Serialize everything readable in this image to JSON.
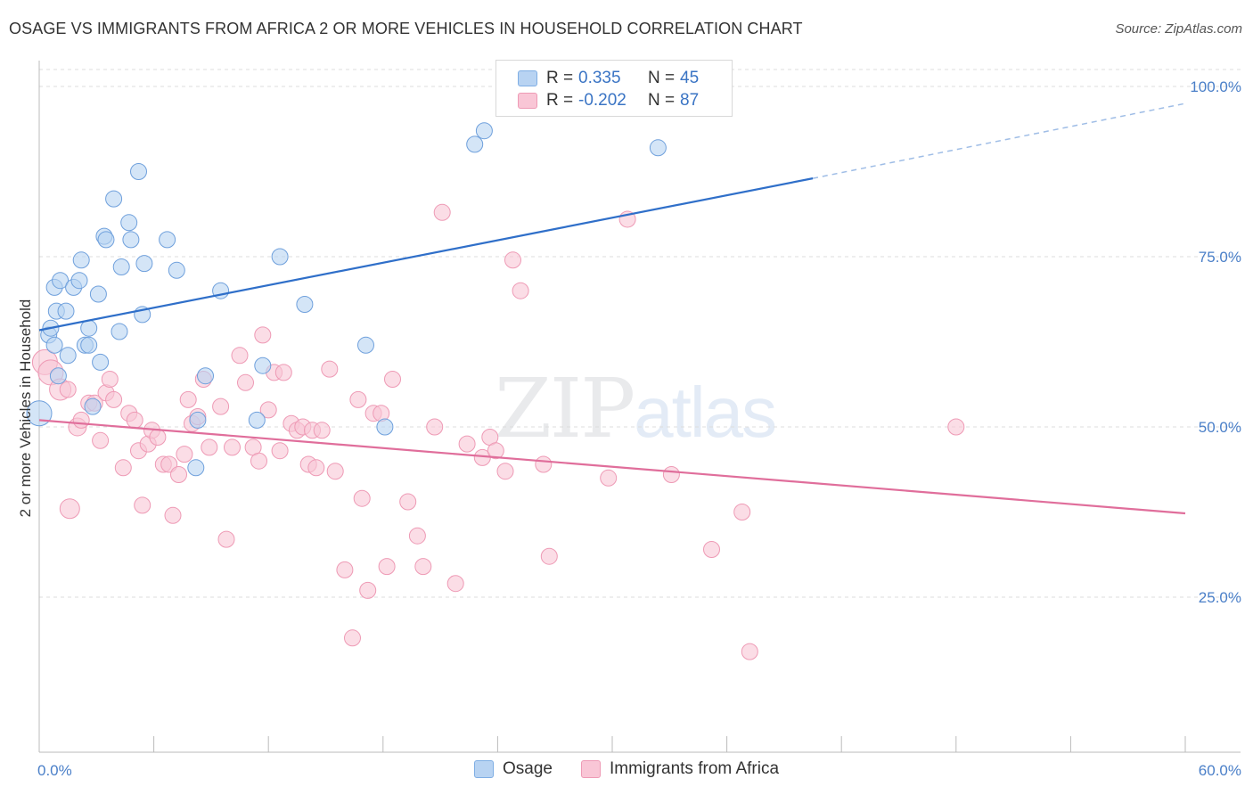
{
  "title": "OSAGE VS IMMIGRANTS FROM AFRICA 2 OR MORE VEHICLES IN HOUSEHOLD CORRELATION CHART",
  "source": "Source: ZipAtlas.com",
  "watermark": {
    "zip": "ZIP",
    "atlas": "atlas"
  },
  "legend": {
    "r_label": "R =",
    "n_label": "N =",
    "rows": [
      {
        "r": "0.335",
        "n": "45",
        "color": "#b8d3f2",
        "border": "#7faee4"
      },
      {
        "r": "-0.202",
        "n": "87",
        "color": "#f9c6d6",
        "border": "#ee9ab5"
      }
    ]
  },
  "bottom_legend": [
    "Osage",
    "Immigrants from Africa"
  ],
  "chart_data": {
    "type": "scatter",
    "title": "OSAGE VS IMMIGRANTS FROM AFRICA 2 OR MORE VEHICLES IN HOUSEHOLD CORRELATION CHART",
    "xlabel": "",
    "ylabel": "2 or more Vehicles in Household",
    "xlim": [
      0,
      60
    ],
    "ylim": [
      0,
      105
    ],
    "x_tick_labels": [
      "0.0%",
      "60.0%"
    ],
    "y_ticks": [
      25,
      50,
      75,
      100
    ],
    "y_tick_labels": [
      "25.0%",
      "50.0%",
      "75.0%",
      "100.0%"
    ],
    "grid": "horizontal dashed",
    "legend_position": "top-center",
    "series": [
      {
        "name": "Osage",
        "color": "#b8d3f2",
        "stroke": "#6fa0dc",
        "trend": {
          "x1": 0,
          "y1": 64.2,
          "x2": 40.5,
          "y2": 86.5,
          "x_dash_end": 60,
          "y_dash_end": 97.5,
          "color": "#2f6fc9"
        },
        "points": [
          [
            0.0,
            52.0,
            14
          ],
          [
            0.5,
            63.5,
            9
          ],
          [
            0.6,
            64.5,
            9
          ],
          [
            0.8,
            70.5,
            9
          ],
          [
            0.8,
            62.0,
            9
          ],
          [
            0.9,
            67.0,
            9
          ],
          [
            1.0,
            57.5,
            9
          ],
          [
            1.1,
            71.5,
            9
          ],
          [
            1.4,
            67.0,
            9
          ],
          [
            1.5,
            60.5,
            9
          ],
          [
            1.8,
            70.5,
            9
          ],
          [
            2.1,
            71.5,
            9
          ],
          [
            2.2,
            74.5,
            9
          ],
          [
            2.4,
            62.0,
            9
          ],
          [
            2.6,
            62.0,
            9
          ],
          [
            2.6,
            64.5,
            9
          ],
          [
            2.8,
            53.0,
            9
          ],
          [
            3.1,
            69.5,
            9
          ],
          [
            3.2,
            59.5,
            9
          ],
          [
            3.4,
            78.0,
            9
          ],
          [
            3.5,
            77.5,
            9
          ],
          [
            3.9,
            83.5,
            9
          ],
          [
            4.2,
            64.0,
            9
          ],
          [
            4.3,
            73.5,
            9
          ],
          [
            4.7,
            80.0,
            9
          ],
          [
            4.8,
            77.5,
            9
          ],
          [
            5.2,
            87.5,
            9
          ],
          [
            5.4,
            66.5,
            9
          ],
          [
            5.5,
            74.0,
            9
          ],
          [
            6.7,
            77.5,
            9
          ],
          [
            7.2,
            73.0,
            9
          ],
          [
            8.2,
            44.0,
            9
          ],
          [
            8.3,
            51.0,
            9
          ],
          [
            8.7,
            57.5,
            9
          ],
          [
            9.5,
            70.0,
            9
          ],
          [
            11.4,
            51.0,
            9
          ],
          [
            11.7,
            59.0,
            9
          ],
          [
            12.6,
            75.0,
            9
          ],
          [
            13.9,
            68.0,
            9
          ],
          [
            17.1,
            62.0,
            9
          ],
          [
            18.1,
            50.0,
            9
          ],
          [
            22.8,
            91.5,
            9
          ],
          [
            23.3,
            93.5,
            9
          ],
          [
            32.4,
            91.0,
            9
          ]
        ]
      },
      {
        "name": "Immigrants from Africa",
        "color": "#f9c6d6",
        "stroke": "#ee9ab5",
        "trend": {
          "x1": 0,
          "y1": 51.0,
          "x2": 60,
          "y2": 37.3,
          "color": "#e06e9b"
        },
        "points": [
          [
            0.3,
            59.5,
            14
          ],
          [
            0.6,
            58.0,
            14
          ],
          [
            1.1,
            55.5,
            12
          ],
          [
            1.5,
            55.5,
            9
          ],
          [
            1.6,
            38.0,
            11
          ],
          [
            2.0,
            50.0,
            10
          ],
          [
            2.2,
            51.0,
            9
          ],
          [
            2.6,
            53.5,
            9
          ],
          [
            2.9,
            53.5,
            9
          ],
          [
            3.2,
            48.0,
            9
          ],
          [
            3.5,
            55.0,
            9
          ],
          [
            3.7,
            57.0,
            9
          ],
          [
            3.9,
            54.0,
            9
          ],
          [
            4.4,
            44.0,
            9
          ],
          [
            4.7,
            52.0,
            9
          ],
          [
            5.0,
            51.0,
            9
          ],
          [
            5.2,
            46.5,
            9
          ],
          [
            5.4,
            38.5,
            9
          ],
          [
            5.7,
            47.5,
            9
          ],
          [
            5.9,
            49.5,
            9
          ],
          [
            6.2,
            48.5,
            9
          ],
          [
            6.5,
            44.5,
            9
          ],
          [
            6.8,
            44.5,
            9
          ],
          [
            7.0,
            37.0,
            9
          ],
          [
            7.3,
            43.0,
            9
          ],
          [
            7.6,
            46.0,
            9
          ],
          [
            7.8,
            54.0,
            9
          ],
          [
            8.0,
            50.5,
            9
          ],
          [
            8.3,
            51.5,
            9
          ],
          [
            8.6,
            57.0,
            9
          ],
          [
            8.9,
            47.0,
            9
          ],
          [
            9.5,
            53.0,
            9
          ],
          [
            9.8,
            33.5,
            9
          ],
          [
            10.1,
            47.0,
            9
          ],
          [
            10.5,
            60.5,
            9
          ],
          [
            10.8,
            56.5,
            9
          ],
          [
            11.2,
            47.0,
            9
          ],
          [
            11.5,
            45.0,
            9
          ],
          [
            11.7,
            63.5,
            9
          ],
          [
            12.0,
            52.5,
            9
          ],
          [
            12.3,
            58.0,
            9
          ],
          [
            12.6,
            46.5,
            9
          ],
          [
            12.8,
            58.0,
            9
          ],
          [
            13.2,
            50.5,
            9
          ],
          [
            13.5,
            49.5,
            9
          ],
          [
            13.8,
            50.0,
            9
          ],
          [
            14.1,
            44.5,
            9
          ],
          [
            14.3,
            49.5,
            9
          ],
          [
            14.5,
            44.0,
            9
          ],
          [
            14.8,
            49.5,
            9
          ],
          [
            15.2,
            58.5,
            9
          ],
          [
            15.5,
            43.5,
            9
          ],
          [
            16.0,
            29.0,
            9
          ],
          [
            16.4,
            19.0,
            9
          ],
          [
            16.7,
            54.0,
            9
          ],
          [
            16.9,
            39.5,
            9
          ],
          [
            17.2,
            26.0,
            9
          ],
          [
            17.5,
            52.0,
            9
          ],
          [
            17.9,
            52.0,
            9
          ],
          [
            18.2,
            29.5,
            9
          ],
          [
            18.5,
            57.0,
            9
          ],
          [
            19.3,
            39.0,
            9
          ],
          [
            19.8,
            34.0,
            9
          ],
          [
            20.1,
            29.5,
            9
          ],
          [
            20.7,
            50.0,
            9
          ],
          [
            21.1,
            81.5,
            9
          ],
          [
            21.8,
            27.0,
            9
          ],
          [
            22.4,
            47.5,
            9
          ],
          [
            23.2,
            45.5,
            9
          ],
          [
            23.6,
            48.5,
            9
          ],
          [
            23.9,
            46.5,
            9
          ],
          [
            24.4,
            43.5,
            9
          ],
          [
            24.8,
            74.5,
            9
          ],
          [
            25.2,
            70.0,
            9
          ],
          [
            26.4,
            44.5,
            9
          ],
          [
            26.7,
            31.0,
            9
          ],
          [
            29.8,
            42.5,
            9
          ],
          [
            30.8,
            80.5,
            9
          ],
          [
            33.1,
            43.0,
            9
          ],
          [
            35.2,
            32.0,
            9
          ],
          [
            36.8,
            37.5,
            9
          ],
          [
            37.2,
            17.0,
            9
          ],
          [
            48.0,
            50.0,
            9
          ]
        ]
      }
    ]
  }
}
